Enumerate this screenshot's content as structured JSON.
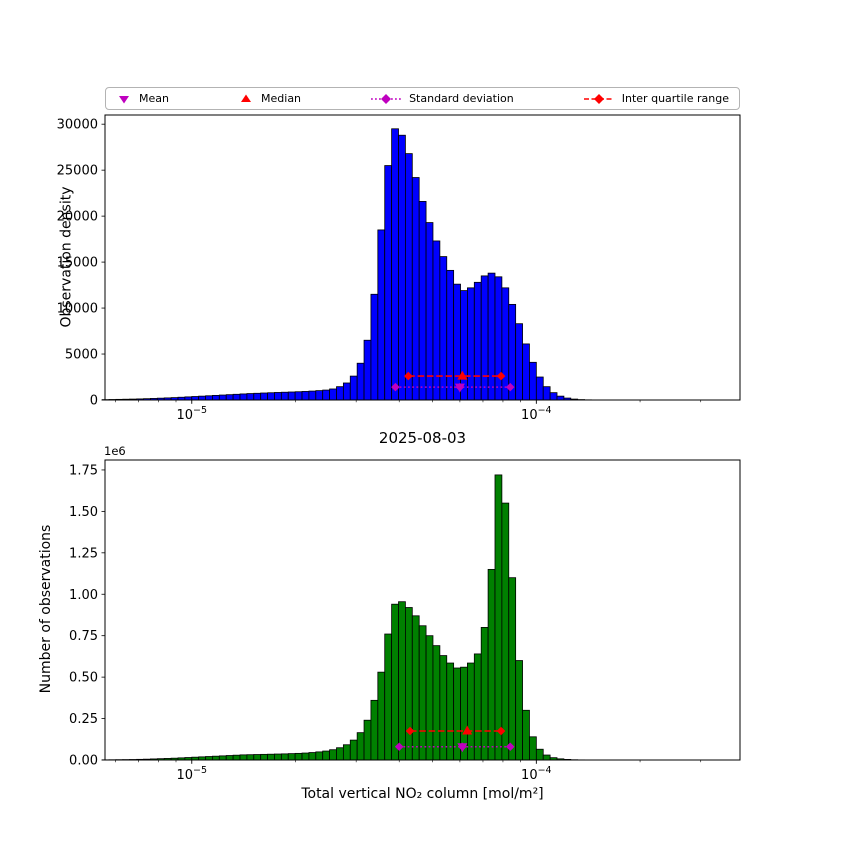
{
  "figure": {
    "background": "#ffffff"
  },
  "legend": {
    "items": [
      {
        "label": "Mean",
        "marker": "triangle-down",
        "color": "#bf00bf"
      },
      {
        "label": "Median",
        "marker": "triangle-up",
        "color": "#ff0000"
      },
      {
        "label": "Standard deviation",
        "marker": "diamond-dotted-line",
        "color": "#bf00bf"
      },
      {
        "label": "Inter quartile range",
        "marker": "diamond-dashed-line",
        "color": "#ff0000"
      }
    ]
  },
  "chart_data": [
    {
      "type": "bar",
      "name": "observation-density-histogram",
      "ylabel": "Observation density",
      "xscale": "log",
      "xlim": [
        5.6e-06,
        0.00039
      ],
      "ylim": [
        0,
        31000
      ],
      "bar_color": "#0000ff",
      "bar_edge_color": "#000000",
      "yticks": [
        {
          "value": 0,
          "label": "0"
        },
        {
          "value": 5000,
          "label": "5000"
        },
        {
          "value": 10000,
          "label": "10000"
        },
        {
          "value": 15000,
          "label": "15000"
        },
        {
          "value": 20000,
          "label": "20000"
        },
        {
          "value": 25000,
          "label": "25000"
        },
        {
          "value": 30000,
          "label": "30000"
        }
      ],
      "xticks": [
        {
          "value": 1e-05,
          "base": "10",
          "exp": "−5"
        },
        {
          "value": 0.0001,
          "base": "10",
          "exp": "−4"
        }
      ],
      "bins": {
        "log10_start": -5.26,
        "log10_width": 0.02
      },
      "values": [
        40,
        55,
        70,
        85,
        100,
        120,
        145,
        170,
        200,
        230,
        260,
        300,
        340,
        380,
        420,
        460,
        500,
        540,
        580,
        620,
        660,
        700,
        730,
        760,
        790,
        820,
        845,
        870,
        900,
        930,
        970,
        1020,
        1080,
        1200,
        1450,
        1850,
        2600,
        4000,
        6500,
        11500,
        18500,
        25500,
        29500,
        28800,
        26800,
        24200,
        21600,
        19300,
        17300,
        15600,
        14100,
        12600,
        11900,
        12200,
        12800,
        13500,
        13800,
        13400,
        12200,
        10400,
        8300,
        6100,
        4100,
        2500,
        1450,
        800,
        420,
        210,
        100,
        45,
        18,
        6,
        0,
        0,
        0
      ],
      "markers": {
        "mean": 6e-05,
        "median": 6.1e-05,
        "std_range": [
          3.9e-05,
          8.4e-05
        ],
        "std_y": 1400,
        "iqr_range": [
          4.25e-05,
          7.9e-05
        ],
        "iqr_y": 2600,
        "mean_color": "#bf00bf",
        "median_color": "#ff0000"
      }
    },
    {
      "type": "bar",
      "name": "number-of-observations-histogram",
      "title": "2025-08-03",
      "ylabel": "Number of observations",
      "xlabel": "Total vertical NO₂ column [mol/m²]",
      "offset_text": "1e6",
      "xscale": "log",
      "xlim": [
        5.6e-06,
        0.00039
      ],
      "ylim": [
        0,
        1810000
      ],
      "bar_color": "#008000",
      "bar_edge_color": "#000000",
      "yticks": [
        {
          "value": 0,
          "label": "0.00"
        },
        {
          "value": 250000,
          "label": "0.25"
        },
        {
          "value": 500000,
          "label": "0.50"
        },
        {
          "value": 750000,
          "label": "0.75"
        },
        {
          "value": 1000000,
          "label": "1.00"
        },
        {
          "value": 1250000,
          "label": "1.25"
        },
        {
          "value": 1500000,
          "label": "1.50"
        },
        {
          "value": 1750000,
          "label": "1.75"
        }
      ],
      "xticks": [
        {
          "value": 1e-05,
          "base": "10",
          "exp": "−5"
        },
        {
          "value": 0.0001,
          "base": "10",
          "exp": "−4"
        }
      ],
      "bins": {
        "log10_start": -5.26,
        "log10_width": 0.02
      },
      "values": [
        1000,
        1500,
        2000,
        2500,
        3000,
        4000,
        5000,
        6500,
        8000,
        9500,
        11000,
        13000,
        15000,
        17000,
        19000,
        21000,
        23000,
        25000,
        27000,
        29000,
        31000,
        32000,
        33000,
        34000,
        35000,
        36000,
        37000,
        38500,
        40000,
        42000,
        45000,
        49000,
        54000,
        62000,
        74000,
        92000,
        120000,
        165000,
        240000,
        360000,
        530000,
        760000,
        940000,
        955000,
        920000,
        870000,
        810000,
        750000,
        690000,
        630000,
        585000,
        555000,
        560000,
        585000,
        640000,
        800000,
        1150000,
        1720000,
        1550000,
        1100000,
        600000,
        300000,
        140000,
        65000,
        30000,
        14000,
        7000,
        3500,
        1500,
        700,
        250,
        0,
        0,
        0,
        0
      ],
      "markers": {
        "mean": 6.1e-05,
        "median": 6.3e-05,
        "std_range": [
          4e-05,
          8.4e-05
        ],
        "std_y": 80000,
        "iqr_range": [
          4.3e-05,
          7.9e-05
        ],
        "iqr_y": 175000,
        "mean_color": "#bf00bf",
        "median_color": "#ff0000"
      }
    }
  ]
}
